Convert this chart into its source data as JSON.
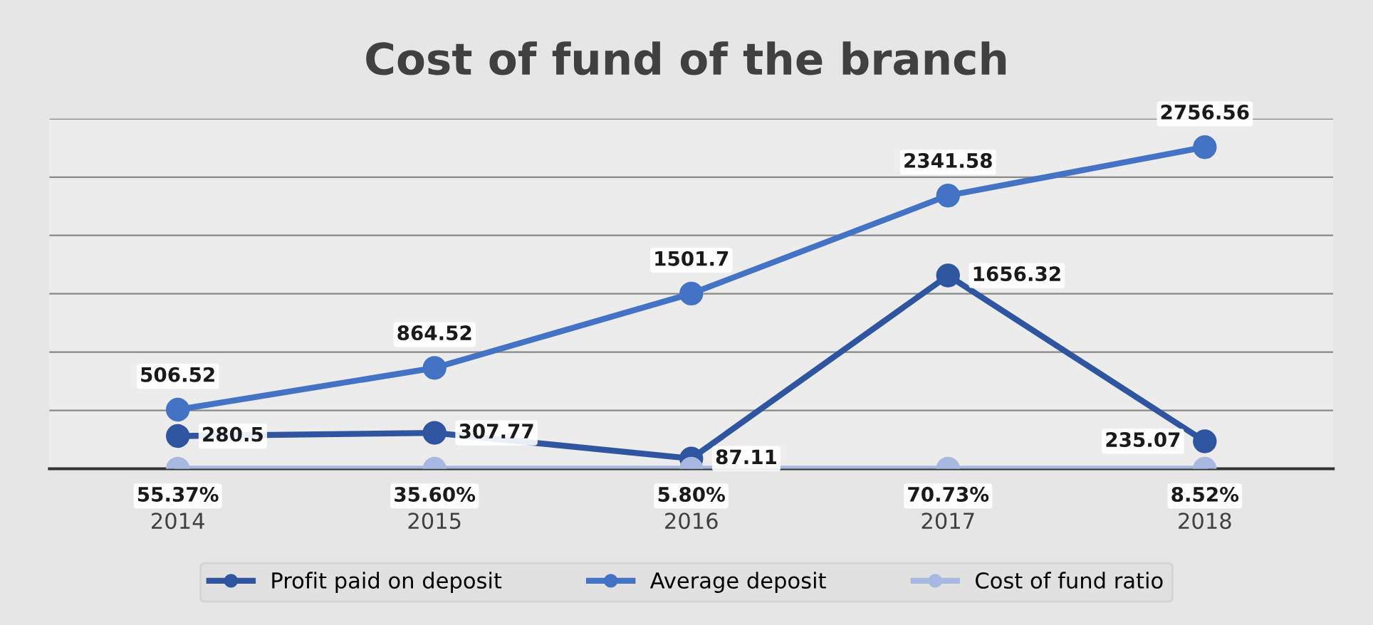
{
  "chart_data": {
    "type": "line",
    "title": "Cost of fund of the branch",
    "categories": [
      "2014",
      "2015",
      "2016",
      "2017",
      "2018"
    ],
    "series": [
      {
        "name": "Profit paid on deposit",
        "color": "#2f55a0",
        "values": [
          280.5,
          307.77,
          87.11,
          1656.32,
          235.07
        ],
        "value_labels": [
          "280.5",
          "307.77",
          "87.11",
          "1656.32",
          "235.07"
        ]
      },
      {
        "name": "Average deposit",
        "color": "#4472c4",
        "values": [
          506.52,
          864.52,
          1501.7,
          2341.58,
          2756.56
        ],
        "value_labels": [
          "506.52",
          "864.52",
          "1501.7",
          "2341.58",
          "2756.56"
        ]
      },
      {
        "name": "Cost of fund ratio",
        "color": "#a9b8e0",
        "values": [
          0.5537,
          0.356,
          0.058,
          0.7073,
          0.0852
        ],
        "value_labels": [
          "55.37%",
          "35.60%",
          "5.80%",
          "70.73%",
          "8.52%"
        ]
      }
    ],
    "ylim": [
      0,
      3000
    ],
    "yticks": [
      {
        "value": 0,
        "label": null
      },
      {
        "value": 500,
        "label": null
      },
      {
        "value": 1000,
        "label": null
      },
      {
        "value": 1500,
        "label": null
      },
      {
        "value": 2000,
        "label": null
      },
      {
        "value": 2500,
        "label": null
      },
      {
        "value": 3000,
        "label": null
      }
    ],
    "tick_labels": "x",
    "grid": "y",
    "legend": "bottom",
    "marker": "circle",
    "line_style": "solid"
  }
}
